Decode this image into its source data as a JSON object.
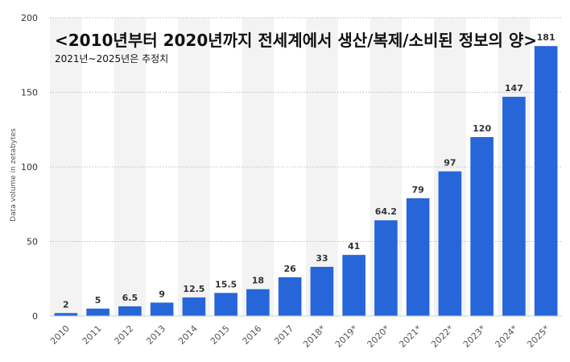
{
  "chart_data": {
    "type": "bar",
    "title": "<2010년부터 2020년까지 전세계에서 생산/복제/소비된 정보의 양>",
    "subtitle": "2021년~2025년은 추정치",
    "xlabel": "",
    "ylabel": "Data volume in zetabytes",
    "categories": [
      "2010",
      "2011",
      "2012",
      "2013",
      "2014",
      "2015",
      "2016",
      "2017",
      "2018*",
      "2019*",
      "2020*",
      "2021*",
      "2022*",
      "2023*",
      "2024*",
      "2025*"
    ],
    "values": [
      2,
      5,
      6.5,
      9,
      12.5,
      15.5,
      18,
      26,
      33,
      41,
      64.2,
      79,
      97,
      120,
      147,
      181
    ],
    "value_labels": [
      "2",
      "5",
      "6.5",
      "9",
      "12.5",
      "15.5",
      "18",
      "26",
      "33",
      "41",
      "64.2",
      "79",
      "97",
      "120",
      "147",
      "181"
    ],
    "ylim": [
      0,
      200
    ],
    "yticks": [
      0,
      50,
      100,
      150,
      200
    ],
    "grid": true,
    "bar_color": "#2766d9",
    "stripe_color": "#f3f3f3",
    "text_color": "#333333"
  }
}
